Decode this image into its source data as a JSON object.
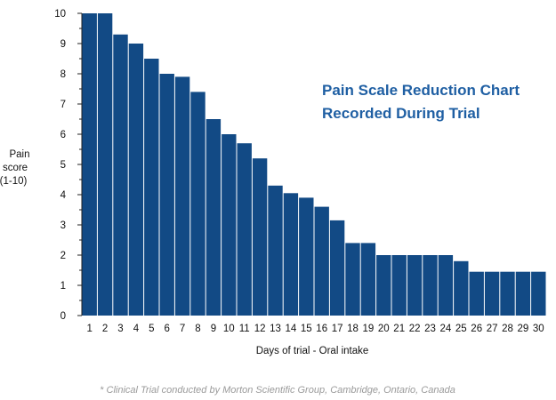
{
  "chart_data": {
    "type": "bar",
    "title_lines": [
      "Pain Scale Reduction Chart",
      "Recorded During Trial"
    ],
    "ylabel_lines": [
      "Pain",
      "score",
      "(1-10)"
    ],
    "xlabel": "Days of trial - Oral intake",
    "footnote": "* Clinical Trial conducted by Morton Scientific Group, Cambridge, Ontario, Canada",
    "categories": [
      "1",
      "2",
      "3",
      "4",
      "5",
      "6",
      "7",
      "8",
      "9",
      "10",
      "11",
      "12",
      "13",
      "14",
      "15",
      "16",
      "17",
      "18",
      "19",
      "20",
      "21",
      "22",
      "23",
      "24",
      "25",
      "26",
      "27",
      "28",
      "29",
      "30"
    ],
    "values": [
      10,
      10,
      9.3,
      9.0,
      8.5,
      8.0,
      7.9,
      7.4,
      6.5,
      6.0,
      5.7,
      5.2,
      4.3,
      4.05,
      3.9,
      3.6,
      3.15,
      2.4,
      2.4,
      2.0,
      2.0,
      2.0,
      2.0,
      2.0,
      1.8,
      1.45,
      1.45,
      1.45,
      1.45,
      1.45
    ],
    "yticks": [
      "0",
      "1",
      "2",
      "3",
      "4",
      "5",
      "6",
      "7",
      "8",
      "9",
      "10"
    ],
    "ylim": [
      0,
      10
    ],
    "grid": false,
    "colors": {
      "bar": "#124a85",
      "title": "#1f5fa3",
      "footnote": "#9a9a9a"
    }
  }
}
